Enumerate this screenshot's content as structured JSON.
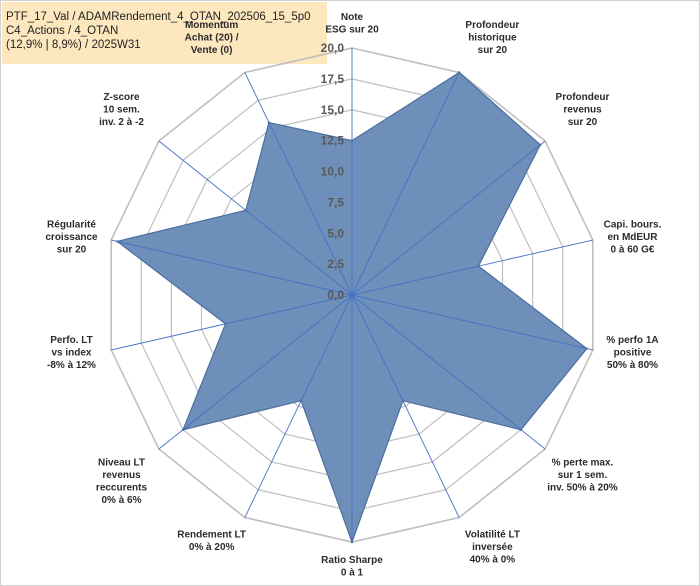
{
  "info": {
    "line1": "PTF_17_Val / ADAMRendement_4_OTAN_202506_15_5p0",
    "line2": "C4_Actions / 4_OTAN",
    "line3": "(12,9% | 8,9%) / 2025W31"
  },
  "chart_data": {
    "type": "radar",
    "title": "",
    "rlim": [
      0,
      20
    ],
    "tick_values": [
      0,
      2.5,
      5,
      7.5,
      10,
      12.5,
      15,
      17.5,
      20
    ],
    "tick_labels": [
      "0,0",
      "2,5",
      "5,0",
      "7,5",
      "10,0",
      "12,5",
      "15,0",
      "17,5",
      "20,0"
    ],
    "grid": true,
    "series": [
      {
        "color": "#6e8fba",
        "outline": "#4a6e9e",
        "values": [
          12.5,
          20,
          19.5,
          10.5,
          19.5,
          17.5,
          9.5,
          20,
          9.5,
          17.5,
          10.5,
          19.5,
          11,
          15.5
        ]
      }
    ],
    "axes": [
      {
        "lines": [
          "Note",
          "ESG sur 20"
        ],
        "color": "#2b2b2b"
      },
      {
        "lines": [
          "Profondeur",
          "historique",
          "sur 20"
        ],
        "color": "#2b2b2b"
      },
      {
        "lines": [
          "Profondeur",
          "revenus",
          "sur 20"
        ],
        "color": "#2b2b2b"
      },
      {
        "lines": [
          "Capi. bours.",
          "en MdEUR",
          "0 à 60 G€"
        ],
        "color": "#2b2b2b"
      },
      {
        "lines": [
          "% perfo 1A",
          "positive",
          "50% à 80%"
        ],
        "color": "#2b2b2b"
      },
      {
        "lines": [
          "% perte max.",
          "sur 1 sem.",
          "inv. 50% à 20%"
        ],
        "color": "#2b2b2b"
      },
      {
        "lines": [
          "Volatilité LT",
          "inversée",
          "40% à 0%"
        ],
        "color": "#2b2b2b"
      },
      {
        "lines": [
          "Ratio Sharpe",
          "0 à 1"
        ],
        "color": "#2b2b2b"
      },
      {
        "lines": [
          "Rendement LT",
          "0% à 20%"
        ],
        "color": "#2b2b2b"
      },
      {
        "lines": [
          "Niveau LT",
          "revenus",
          "reccurents",
          "0% à 6%"
        ],
        "color": "#2b2b2b"
      },
      {
        "lines": [
          "Perfo. LT",
          "vs index",
          "-8% à 12%"
        ],
        "color": "#2b2b2b"
      },
      {
        "lines": [
          "Régularité",
          "croissance",
          "sur 20"
        ],
        "color": "#2b2b2b"
      },
      {
        "lines": [
          "Z-score",
          "10 sem.",
          "inv. 2 à -2"
        ],
        "color": "#2b2b2b"
      },
      {
        "lines": [
          "Momentum",
          "Achat (20) /",
          "Vente (0)"
        ],
        "color": "#8a7a3a"
      }
    ]
  }
}
